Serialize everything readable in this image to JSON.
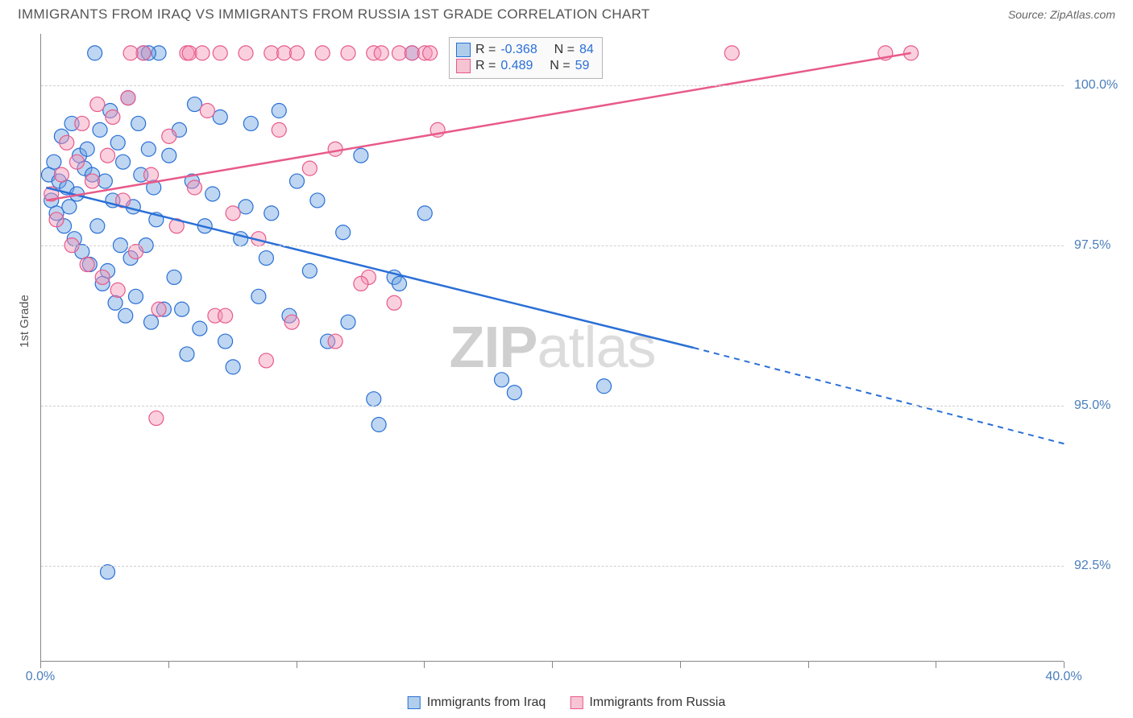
{
  "header": {
    "title": "IMMIGRANTS FROM IRAQ VS IMMIGRANTS FROM RUSSIA 1ST GRADE CORRELATION CHART",
    "source_label": "Source:",
    "source_name": "ZipAtlas.com"
  },
  "chart": {
    "type": "scatter",
    "watermark_strong": "ZIP",
    "watermark_rest": "atlas",
    "ylabel": "1st Grade",
    "xlim": [
      0,
      40
    ],
    "ylim": [
      91,
      100.8
    ],
    "xtick_labels": [
      "0.0%",
      "40.0%"
    ],
    "xtick_positions": [
      0,
      40
    ],
    "xtick_marks": [
      0,
      5,
      10,
      15,
      20,
      25,
      30,
      35,
      40
    ],
    "ytick_labels": [
      "92.5%",
      "95.0%",
      "97.5%",
      "100.0%"
    ],
    "ytick_positions": [
      92.5,
      95.0,
      97.5,
      100.0
    ],
    "grid_color": "#d0d0d0",
    "background_color": "#ffffff",
    "marker_radius": 9,
    "series": [
      {
        "id": "iraq",
        "label": "Immigrants from Iraq",
        "color_fill": "rgba(110,165,225,0.45)",
        "color_stroke": "#2a6fd6",
        "R": -0.368,
        "N": 84,
        "line_solid": {
          "x1": 0.2,
          "y1": 98.4,
          "x2": 25.5,
          "y2": 95.9
        },
        "line_dashed": {
          "x1": 25.5,
          "y1": 95.9,
          "x2": 40,
          "y2": 94.4
        },
        "points": [
          [
            0.3,
            98.6
          ],
          [
            0.4,
            98.2
          ],
          [
            0.5,
            98.8
          ],
          [
            0.6,
            98.0
          ],
          [
            0.7,
            98.5
          ],
          [
            0.8,
            99.2
          ],
          [
            0.9,
            97.8
          ],
          [
            1.0,
            98.4
          ],
          [
            1.1,
            98.1
          ],
          [
            1.2,
            99.4
          ],
          [
            1.3,
            97.6
          ],
          [
            1.4,
            98.3
          ],
          [
            1.5,
            98.9
          ],
          [
            1.6,
            97.4
          ],
          [
            1.7,
            98.7
          ],
          [
            1.8,
            99.0
          ],
          [
            1.9,
            97.2
          ],
          [
            2.0,
            98.6
          ],
          [
            2.1,
            100.5
          ],
          [
            2.2,
            97.8
          ],
          [
            2.3,
            99.3
          ],
          [
            2.4,
            96.9
          ],
          [
            2.5,
            98.5
          ],
          [
            2.6,
            97.1
          ],
          [
            2.7,
            99.6
          ],
          [
            2.8,
            98.2
          ],
          [
            2.9,
            96.6
          ],
          [
            3.0,
            99.1
          ],
          [
            3.1,
            97.5
          ],
          [
            3.2,
            98.8
          ],
          [
            3.3,
            96.4
          ],
          [
            3.4,
            99.8
          ],
          [
            3.5,
            97.3
          ],
          [
            3.6,
            98.1
          ],
          [
            3.7,
            96.7
          ],
          [
            3.8,
            99.4
          ],
          [
            3.9,
            98.6
          ],
          [
            4.0,
            100.5
          ],
          [
            4.1,
            97.5
          ],
          [
            4.2,
            99.0
          ],
          [
            4.3,
            96.3
          ],
          [
            4.4,
            98.4
          ],
          [
            4.5,
            97.9
          ],
          [
            4.6,
            100.5
          ],
          [
            4.8,
            96.5
          ],
          [
            5.0,
            98.9
          ],
          [
            5.2,
            97.0
          ],
          [
            5.4,
            99.3
          ],
          [
            5.5,
            96.5
          ],
          [
            5.7,
            95.8
          ],
          [
            5.9,
            98.5
          ],
          [
            6.0,
            99.7
          ],
          [
            6.2,
            96.2
          ],
          [
            6.4,
            97.8
          ],
          [
            6.7,
            98.3
          ],
          [
            7.0,
            99.5
          ],
          [
            7.2,
            96.0
          ],
          [
            7.5,
            95.6
          ],
          [
            7.8,
            97.6
          ],
          [
            8.0,
            98.1
          ],
          [
            8.2,
            99.4
          ],
          [
            8.5,
            96.7
          ],
          [
            8.8,
            97.3
          ],
          [
            9.0,
            98.0
          ],
          [
            9.3,
            99.6
          ],
          [
            9.7,
            96.4
          ],
          [
            10.0,
            98.5
          ],
          [
            10.5,
            97.1
          ],
          [
            10.8,
            98.2
          ],
          [
            11.2,
            96.0
          ],
          [
            11.8,
            97.7
          ],
          [
            12.5,
            98.9
          ],
          [
            12.0,
            96.3
          ],
          [
            13.0,
            95.1
          ],
          [
            13.2,
            94.7
          ],
          [
            13.8,
            97.0
          ],
          [
            14.0,
            96.9
          ],
          [
            14.5,
            100.5
          ],
          [
            15.0,
            98.0
          ],
          [
            18.5,
            95.2
          ],
          [
            18.0,
            95.4
          ],
          [
            22.0,
            95.3
          ],
          [
            2.6,
            92.4
          ],
          [
            4.2,
            100.5
          ]
        ]
      },
      {
        "id": "russia",
        "label": "Immigrants from Russia",
        "color_fill": "rgba(245,150,185,0.45)",
        "color_stroke": "#e85a8a",
        "R": 0.489,
        "N": 59,
        "line_solid": {
          "x1": 0.2,
          "y1": 98.2,
          "x2": 34,
          "y2": 100.5
        },
        "line_dashed": null,
        "points": [
          [
            0.4,
            98.3
          ],
          [
            0.6,
            97.9
          ],
          [
            0.8,
            98.6
          ],
          [
            1.0,
            99.1
          ],
          [
            1.2,
            97.5
          ],
          [
            1.4,
            98.8
          ],
          [
            1.6,
            99.4
          ],
          [
            1.8,
            97.2
          ],
          [
            2.0,
            98.5
          ],
          [
            2.2,
            99.7
          ],
          [
            2.4,
            97.0
          ],
          [
            2.6,
            98.9
          ],
          [
            2.8,
            99.5
          ],
          [
            3.0,
            96.8
          ],
          [
            3.2,
            98.2
          ],
          [
            3.4,
            99.8
          ],
          [
            3.7,
            97.4
          ],
          [
            4.0,
            100.5
          ],
          [
            4.3,
            98.6
          ],
          [
            4.6,
            96.5
          ],
          [
            5.0,
            99.2
          ],
          [
            5.3,
            97.8
          ],
          [
            5.7,
            100.5
          ],
          [
            6.0,
            98.4
          ],
          [
            6.5,
            99.6
          ],
          [
            6.8,
            96.4
          ],
          [
            7.0,
            100.5
          ],
          [
            7.5,
            98.0
          ],
          [
            8.0,
            100.5
          ],
          [
            8.5,
            97.6
          ],
          [
            9.0,
            100.5
          ],
          [
            9.3,
            99.3
          ],
          [
            9.5,
            100.5
          ],
          [
            9.8,
            96.3
          ],
          [
            10.0,
            100.5
          ],
          [
            10.5,
            98.7
          ],
          [
            11.0,
            100.5
          ],
          [
            11.5,
            99.0
          ],
          [
            12.0,
            100.5
          ],
          [
            12.8,
            97.0
          ],
          [
            13.0,
            100.5
          ],
          [
            13.3,
            100.5
          ],
          [
            13.8,
            96.6
          ],
          [
            14.0,
            100.5
          ],
          [
            14.5,
            100.5
          ],
          [
            15.0,
            100.5
          ],
          [
            15.2,
            100.5
          ],
          [
            15.5,
            99.3
          ],
          [
            4.5,
            94.8
          ],
          [
            7.2,
            96.4
          ],
          [
            8.8,
            95.7
          ],
          [
            11.5,
            96.0
          ],
          [
            12.5,
            96.9
          ],
          [
            27.0,
            100.5
          ],
          [
            33.0,
            100.5
          ],
          [
            34.0,
            100.5
          ],
          [
            5.8,
            100.5
          ],
          [
            3.5,
            100.5
          ],
          [
            6.3,
            100.5
          ]
        ]
      }
    ],
    "legend_box": {
      "rows": [
        {
          "sq": "blue",
          "r_label": "R =",
          "r_val": "-0.368",
          "n_label": "N =",
          "n_val": "84"
        },
        {
          "sq": "pink",
          "r_label": "R =",
          "r_val": " 0.489",
          "n_label": "N =",
          "n_val": "59"
        }
      ]
    },
    "bottom_legend": [
      {
        "sq": "blue",
        "label": "Immigrants from Iraq"
      },
      {
        "sq": "pink",
        "label": "Immigrants from Russia"
      }
    ]
  }
}
